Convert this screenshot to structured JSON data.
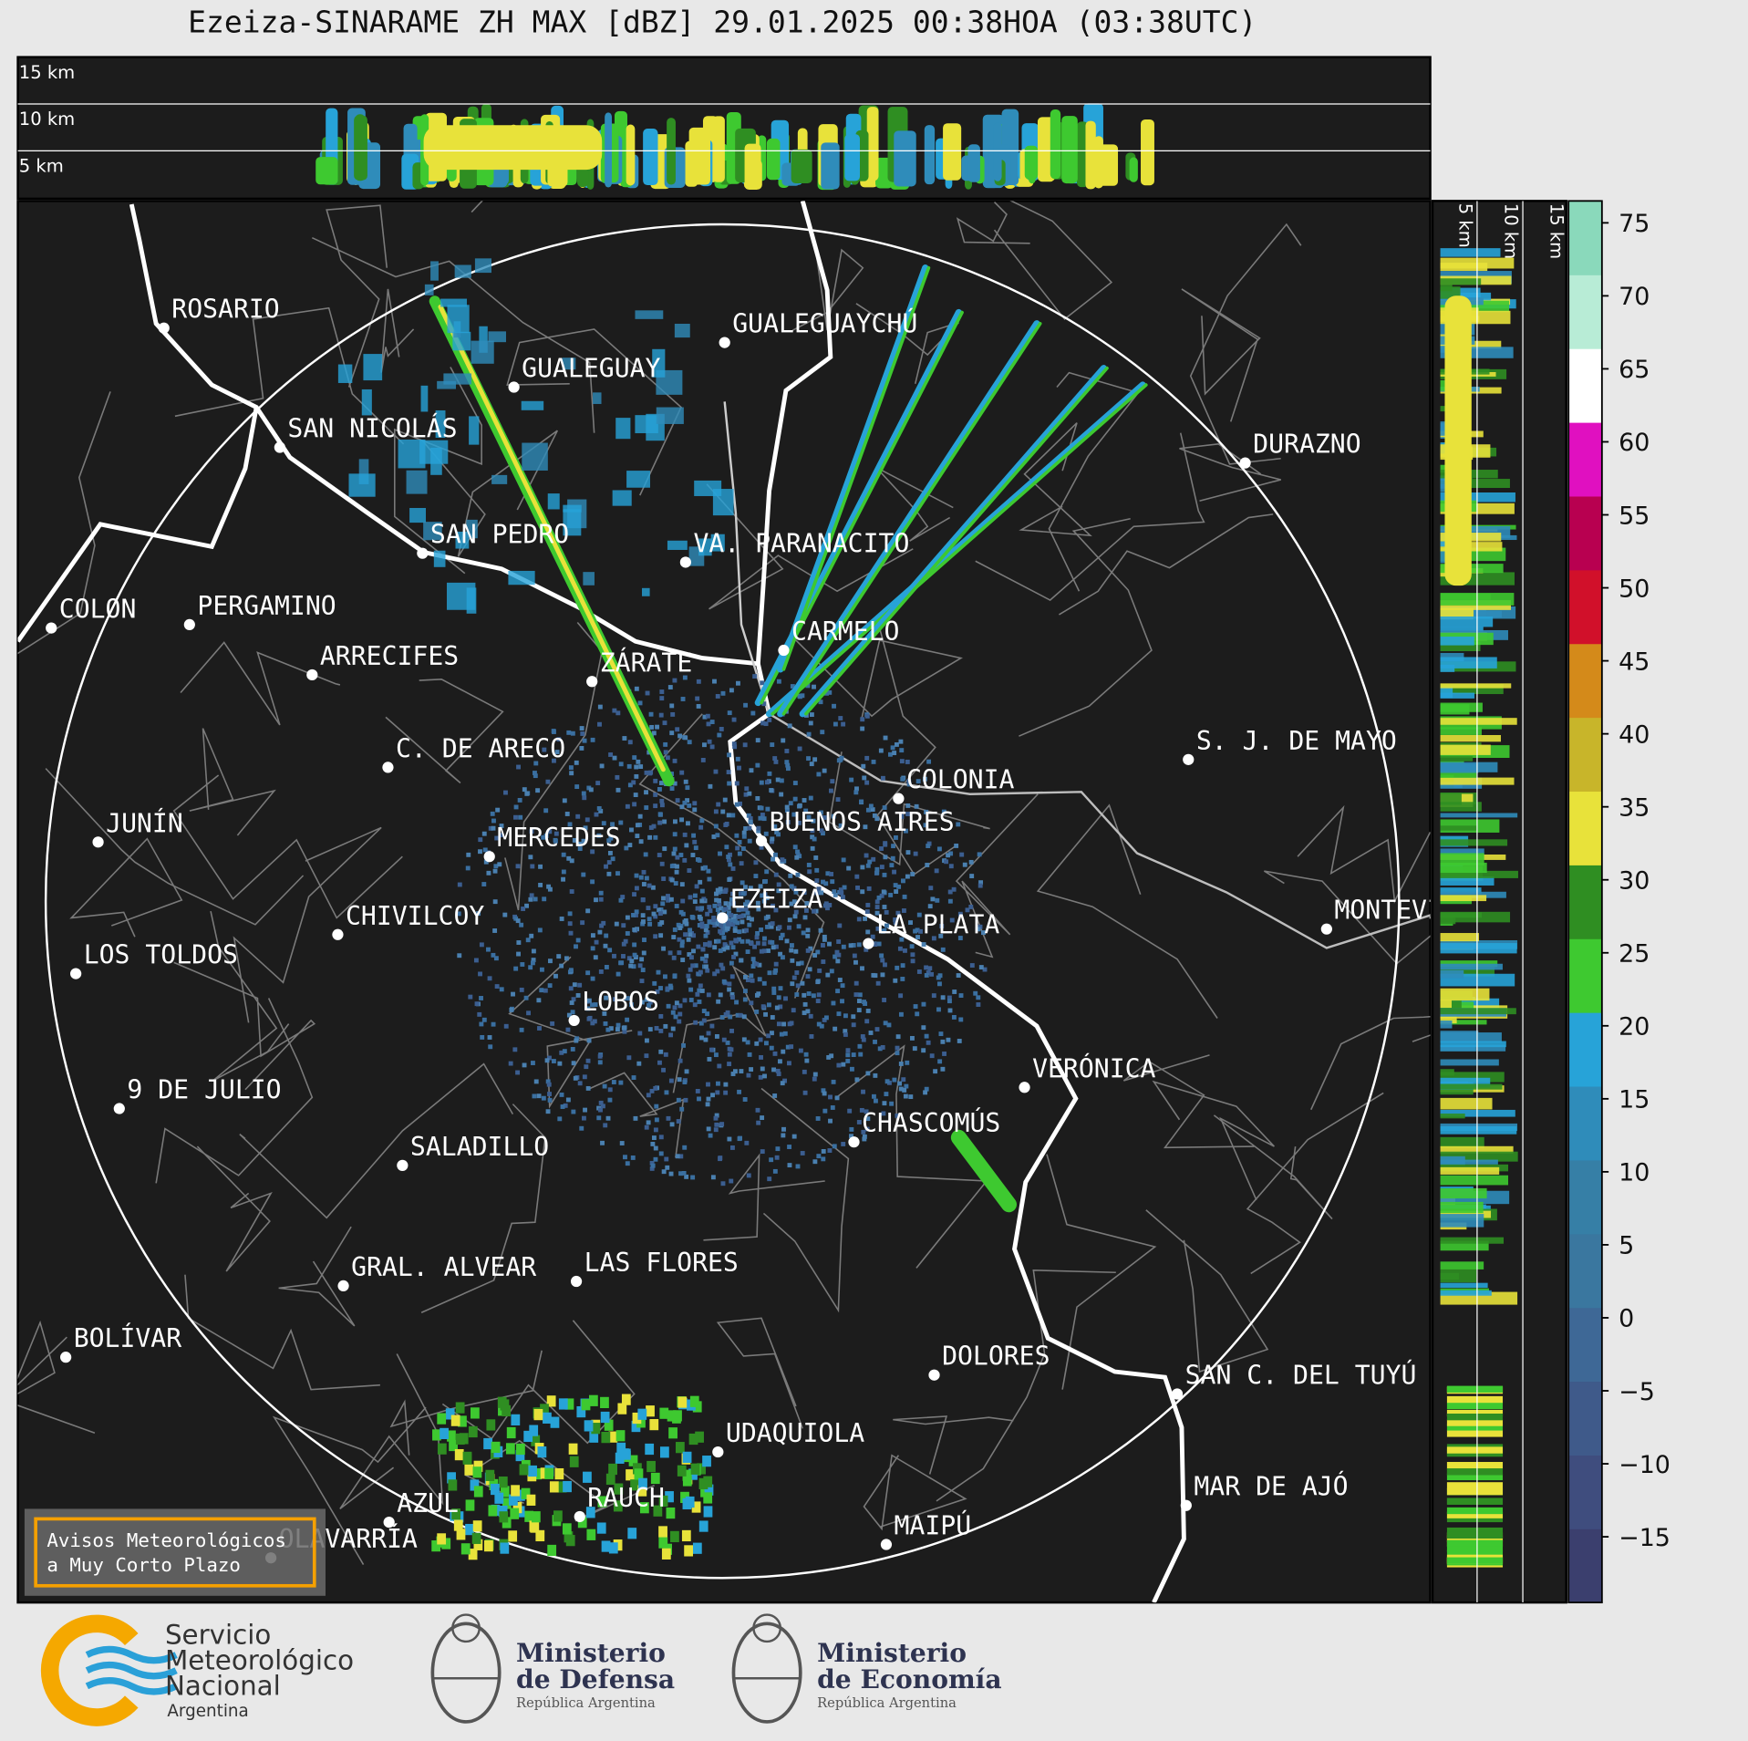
{
  "title": "Ezeiza-SINARAME ZH MAX [dBZ] 29.01.2025 00:38HOA (03:38UTC)",
  "top_panel": {
    "height_labels": [
      "15 km",
      "10 km",
      "5 km"
    ]
  },
  "side_panel": {
    "height_labels": [
      "5 km",
      "10 km",
      "15 km"
    ]
  },
  "colorbar": {
    "lim": [
      -19.5,
      76.5
    ],
    "ticks": [
      {
        "value": -15,
        "label": "−15"
      },
      {
        "value": -10,
        "label": "−10"
      },
      {
        "value": -5,
        "label": "−5"
      },
      0,
      5,
      10,
      15,
      20,
      25,
      30,
      35,
      40,
      45,
      50,
      55,
      60,
      65,
      70,
      75
    ],
    "colors": [
      "#3b3f6e",
      "#3f4d7e",
      "#3f5a8a",
      "#3e6896",
      "#3a779f",
      "#367fa6",
      "#2f8cba",
      "#27a3d8",
      "#3ec930",
      "#2f8e22",
      "#e8e23a",
      "#c8b52a",
      "#d48a1a",
      "#d1102a",
      "#b80050",
      "#e010c0",
      "#ffffff",
      "#b8ecd6",
      "#8ad9bb"
    ]
  },
  "cities": [
    "ROSARIO",
    "GUALEGUAYCHÚ",
    "GUALEGUAY",
    "SAN NICOLÁS",
    "DURAZNO",
    "SAN PEDRO",
    "VA. PARANACITO",
    "COLON",
    "PERGAMINO",
    "CARMELO",
    "ARRECIFES",
    "ZÁRATE",
    "C. DE ARECO",
    "S. J. DE MAYO",
    "COLONIA",
    "JUNÍN",
    "BUENOS AIRES",
    "MERCEDES",
    "EZEIZA",
    "CHIVILCOY",
    "LA PLATA",
    "MONTEVIDEO",
    "LOS TOLDOS",
    "LOBOS",
    "VERÓNICA",
    "9 DE JULIO",
    "CHASCOMÚS",
    "SALADILLO",
    "GRAL. ALVEAR",
    "LAS FLORES",
    "BOLÍVAR",
    "DOLORES",
    "SAN C. DEL TUYÚ",
    "UDAQUIOLA",
    "MAR DE AJÓ",
    "AZUL",
    "RAUCH",
    "OLAVARRÍA",
    "MAIPÚ"
  ],
  "warning_box": {
    "lines": [
      "Avisos Meteorológicos",
      "a Muy Corto Plazo"
    ]
  },
  "logos": [
    {
      "lines": [
        "Servicio",
        "Meteorológico",
        "Nacional"
      ],
      "sub": "Argentina"
    },
    {
      "lines": [
        "Ministerio",
        "de Defensa"
      ],
      "sub": "República Argentina"
    },
    {
      "lines": [
        "Ministerio",
        "de Economía"
      ],
      "sub": "República Argentina"
    }
  ]
}
